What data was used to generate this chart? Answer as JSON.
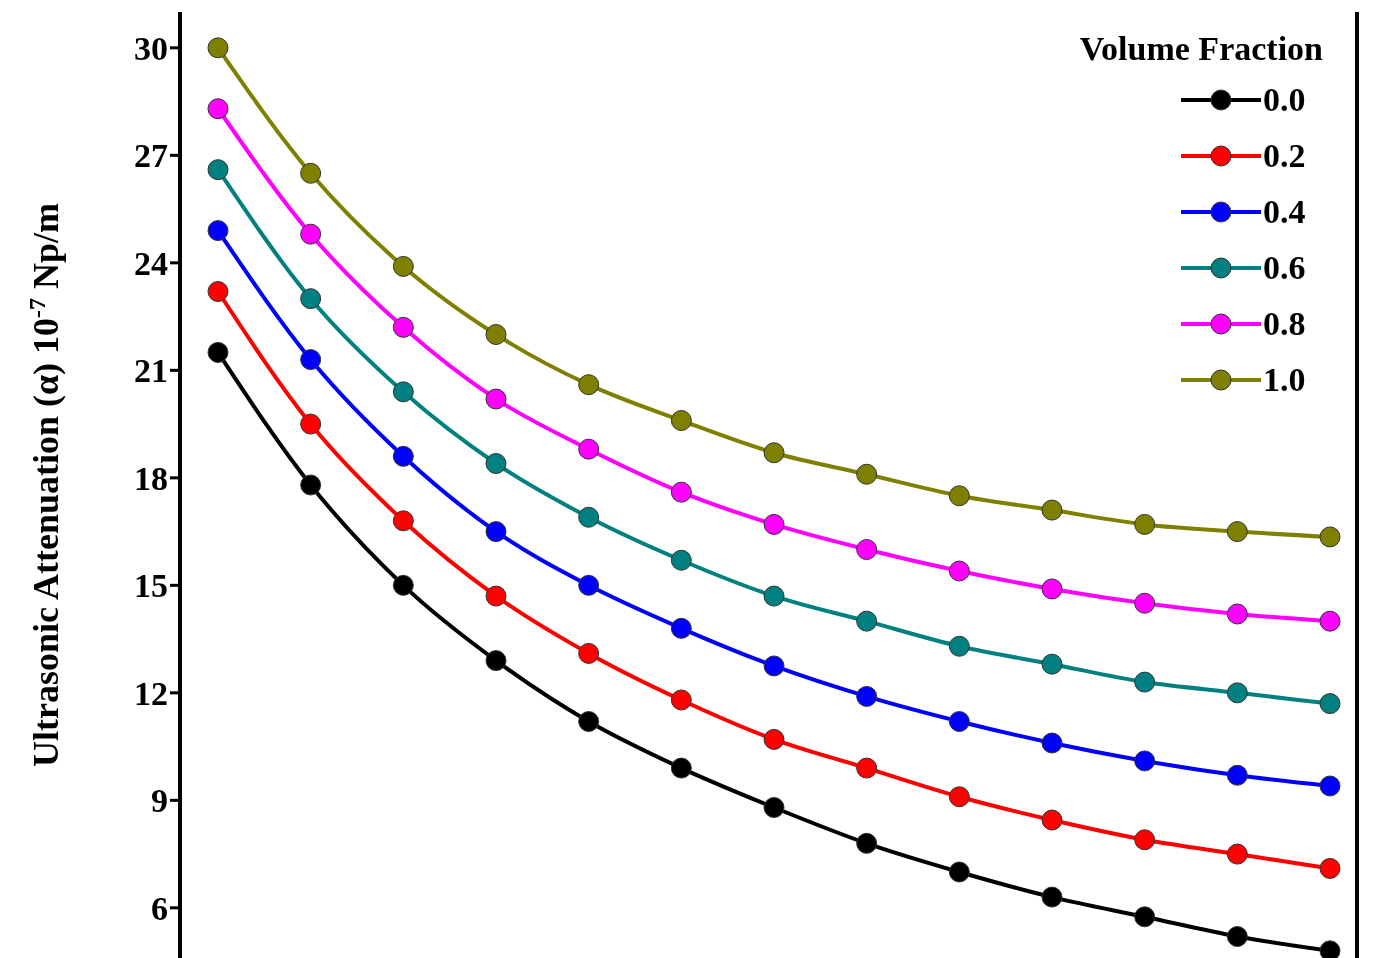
{
  "chart_data": {
    "type": "line",
    "ylabel": "Ultrasonic Attenuation (α) 10$^{-7}$ Np/m",
    "legend_title": "Volume Fraction",
    "categories": [
      null,
      null,
      null,
      null,
      null,
      null,
      null,
      null,
      null,
      null,
      null,
      null,
      null
    ],
    "series": [
      {
        "name": "0.0",
        "color": "#000000",
        "values": [
          21.5,
          17.8,
          15.0,
          12.9,
          11.2,
          9.9,
          8.8,
          7.8,
          7.0,
          6.3,
          5.75,
          5.2,
          4.8
        ]
      },
      {
        "name": "0.2",
        "color": "#ff0000",
        "values": [
          23.2,
          19.5,
          16.8,
          14.7,
          13.1,
          11.8,
          10.7,
          9.9,
          9.1,
          8.45,
          7.9,
          7.5,
          7.1
        ]
      },
      {
        "name": "0.4",
        "color": "#0000ff",
        "values": [
          24.9,
          21.3,
          18.6,
          16.5,
          15.0,
          13.8,
          12.75,
          11.9,
          11.2,
          10.6,
          10.1,
          9.7,
          9.4
        ]
      },
      {
        "name": "0.6",
        "color": "#008080",
        "values": [
          26.6,
          23.0,
          20.4,
          18.4,
          16.9,
          15.7,
          14.7,
          14.0,
          13.3,
          12.8,
          12.3,
          12.0,
          11.7
        ]
      },
      {
        "name": "0.8",
        "color": "#ff00ff",
        "values": [
          28.3,
          24.8,
          22.2,
          20.2,
          18.8,
          17.6,
          16.7,
          16.0,
          15.4,
          14.9,
          14.5,
          14.2,
          14.0
        ]
      },
      {
        "name": "1.0",
        "color": "#808000",
        "values": [
          30.0,
          26.5,
          23.9,
          22.0,
          20.6,
          19.6,
          18.7,
          18.1,
          17.5,
          17.1,
          16.7,
          16.5,
          16.35
        ]
      }
    ],
    "ylim": [
      4.6,
      31
    ],
    "yticks": [
      6,
      9,
      12,
      15,
      18,
      21,
      24,
      27,
      30
    ],
    "grid": false,
    "legend": "top right",
    "marker": "circle",
    "line_style": "solid",
    "tick_labels": "y"
  }
}
